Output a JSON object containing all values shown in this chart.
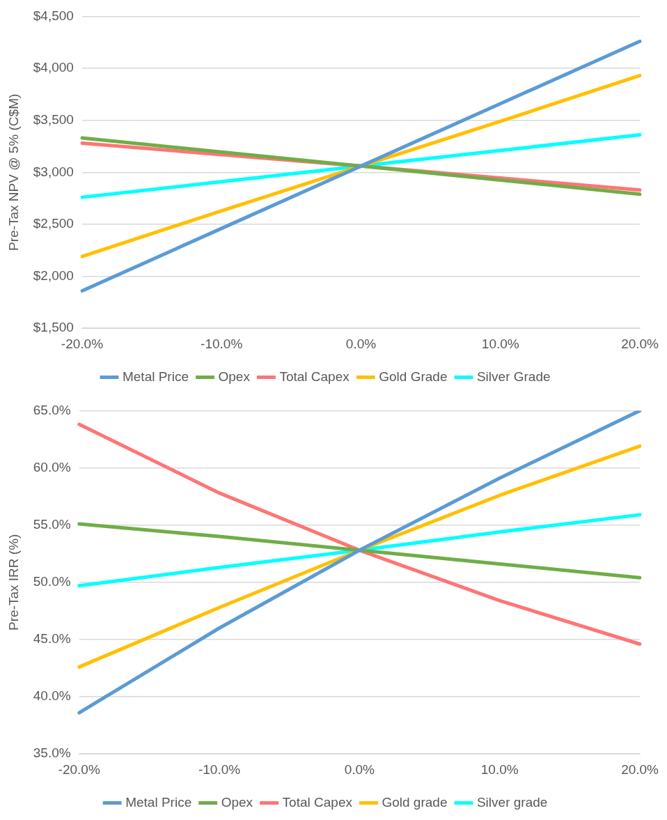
{
  "chart_data": [
    {
      "type": "line",
      "ylabel": "Pre-Tax NPV @ 5% (C$M)",
      "categories": [
        "-20.0%",
        "-10.0%",
        "0.0%",
        "10.0%",
        "20.0%"
      ],
      "series": [
        {
          "name": "Metal Price",
          "color": "#5b9bd5",
          "values": [
            1860,
            2460,
            3060,
            3660,
            4260
          ]
        },
        {
          "name": "Opex",
          "color": "#70ad47",
          "values": [
            3330,
            3195,
            3060,
            2925,
            2790
          ]
        },
        {
          "name": "Total Capex",
          "color": "#ff7575",
          "values": [
            3280,
            3170,
            3060,
            2945,
            2830
          ]
        },
        {
          "name": "Gold Grade",
          "color": "#ffc000",
          "values": [
            2190,
            2630,
            3060,
            3490,
            3930
          ]
        },
        {
          "name": "Silver Grade",
          "color": "#00ffff",
          "values": [
            2760,
            2910,
            3060,
            3210,
            3360
          ]
        }
      ],
      "ylim": [
        1500,
        4500
      ],
      "yticks": [
        {
          "value": 1500,
          "label": "$1,500"
        },
        {
          "value": 2000,
          "label": "$2,000"
        },
        {
          "value": 2500,
          "label": "$2,500"
        },
        {
          "value": 3000,
          "label": "$3,000"
        },
        {
          "value": 3500,
          "label": "$3,500"
        },
        {
          "value": 4000,
          "label": "$4,000"
        },
        {
          "value": 4500,
          "label": "$4,500"
        }
      ],
      "grid": "y",
      "legend": "bottom",
      "marker": "none",
      "line_style": "solid"
    },
    {
      "type": "line",
      "ylabel": "Pre-Tax IRR (%)",
      "categories": [
        "-20.0%",
        "-10.0%",
        "0.0%",
        "10.0%",
        "20.0%"
      ],
      "series": [
        {
          "name": "Metal Price",
          "color": "#5b9bd5",
          "values": [
            38.6,
            46.0,
            52.8,
            59.1,
            65.0
          ]
        },
        {
          "name": "Opex",
          "color": "#70ad47",
          "values": [
            55.1,
            54.0,
            52.8,
            51.6,
            50.4
          ]
        },
        {
          "name": "Total Capex",
          "color": "#ff7575",
          "values": [
            63.8,
            57.8,
            52.8,
            48.4,
            44.6
          ]
        },
        {
          "name": "Gold grade",
          "color": "#ffc000",
          "values": [
            42.6,
            47.8,
            52.8,
            57.6,
            61.9
          ]
        },
        {
          "name": "Silver grade",
          "color": "#00ffff",
          "values": [
            49.7,
            51.3,
            52.8,
            54.4,
            55.9
          ]
        }
      ],
      "ylim": [
        35,
        65
      ],
      "yticks": [
        {
          "value": 35,
          "label": "35.0%"
        },
        {
          "value": 40,
          "label": "40.0%"
        },
        {
          "value": 45,
          "label": "45.0%"
        },
        {
          "value": 50,
          "label": "50.0%"
        },
        {
          "value": 55,
          "label": "55.0%"
        },
        {
          "value": 60,
          "label": "60.0%"
        },
        {
          "value": 65,
          "label": "65.0%"
        }
      ],
      "grid": "y",
      "legend": "bottom",
      "marker": "none",
      "line_style": "solid"
    }
  ]
}
